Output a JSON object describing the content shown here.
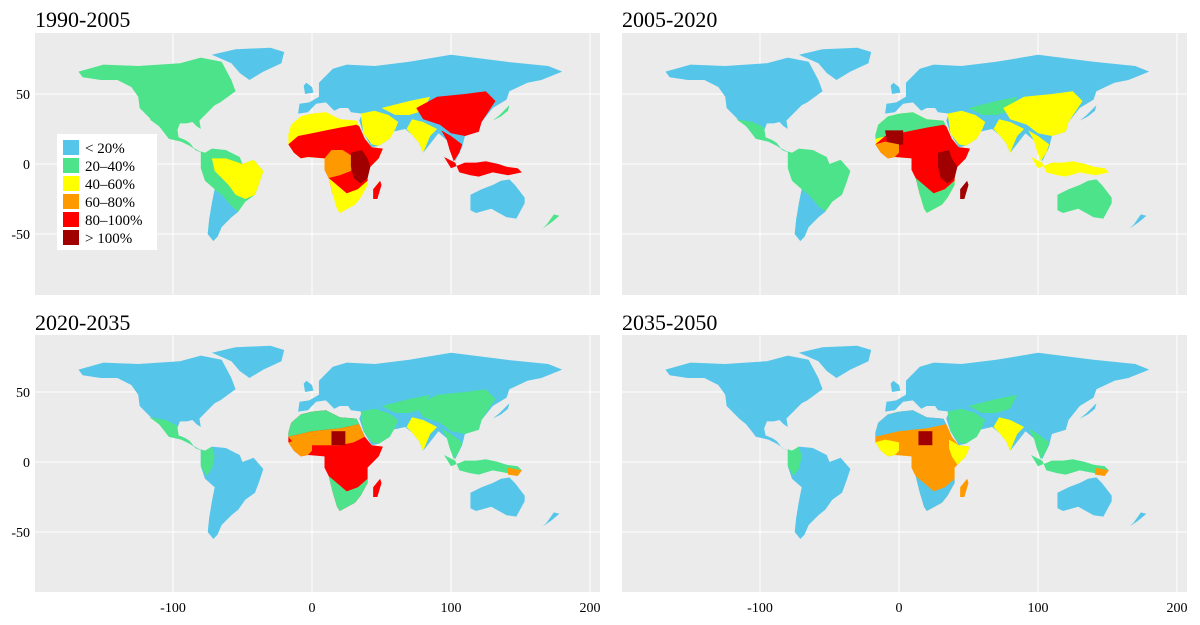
{
  "figure": {
    "panels": [
      {
        "title": "1990-2005"
      },
      {
        "title": "2005-2020"
      },
      {
        "title": "2020-2035"
      },
      {
        "title": "2035-2050"
      }
    ],
    "x_ticks": [
      "-100",
      "0",
      "100",
      "200"
    ],
    "y_ticks": [
      "50",
      "0",
      "-50"
    ],
    "legend": [
      {
        "label": "< 20%",
        "color": "#56C5EA"
      },
      {
        "label": "20–40%",
        "color": "#4DE38A"
      },
      {
        "label": "40–60%",
        "color": "#FFFF00"
      },
      {
        "label": "60–80%",
        "color": "#FF9900"
      },
      {
        "label": "80–100%",
        "color": "#FF0000"
      },
      {
        "label": "> 100%",
        "color": "#A10000"
      }
    ],
    "colors": {
      "panel_bg": "#EBEBEB",
      "grid": "#FFFFFF",
      "ocean_text": "#000000"
    }
  }
}
